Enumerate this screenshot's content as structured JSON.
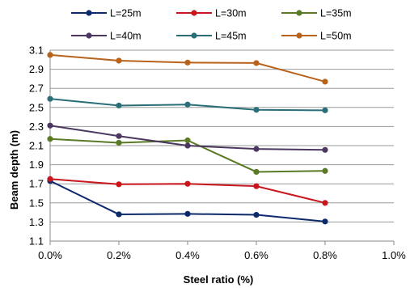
{
  "chart_data": {
    "type": "line",
    "x": [
      "0.0%",
      "0.2%",
      "0.4%",
      "0.6%",
      "0.8%"
    ],
    "x_values": [
      0.0,
      0.2,
      0.4,
      0.6,
      0.8
    ],
    "x_ticks": [
      "0.0%",
      "0.2%",
      "0.4%",
      "0.6%",
      "0.8%",
      "1.0%"
    ],
    "xlim": [
      0.0,
      1.0
    ],
    "y_ticks": [
      "1.1",
      "1.3",
      "1.5",
      "1.7",
      "1.9",
      "2.1",
      "2.3",
      "2.5",
      "2.7",
      "2.9",
      "3.1"
    ],
    "ylim": [
      1.1,
      3.1
    ],
    "xlabel": "Steel ratio (%)",
    "ylabel": "Beam depth (m)",
    "grid": "horizontal",
    "legend_position": "top",
    "series": [
      {
        "name": "L=25m",
        "color": "#0b2a6b",
        "values": [
          1.73,
          1.38,
          1.385,
          1.375,
          1.305
        ]
      },
      {
        "name": "L=30m",
        "color": "#c8161d",
        "values": [
          1.75,
          1.695,
          1.7,
          1.675,
          1.5
        ]
      },
      {
        "name": "L=35m",
        "color": "#5a7a26",
        "values": [
          2.17,
          2.13,
          2.155,
          1.825,
          1.835
        ]
      },
      {
        "name": "L=40m",
        "color": "#4b3760",
        "values": [
          2.31,
          2.2,
          2.1,
          2.065,
          2.055
        ]
      },
      {
        "name": "L=45m",
        "color": "#2a6e78",
        "values": [
          2.59,
          2.52,
          2.53,
          2.475,
          2.47
        ]
      },
      {
        "name": "L=50m",
        "color": "#b8621c",
        "values": [
          3.05,
          2.99,
          2.97,
          2.965,
          2.77
        ]
      }
    ]
  }
}
